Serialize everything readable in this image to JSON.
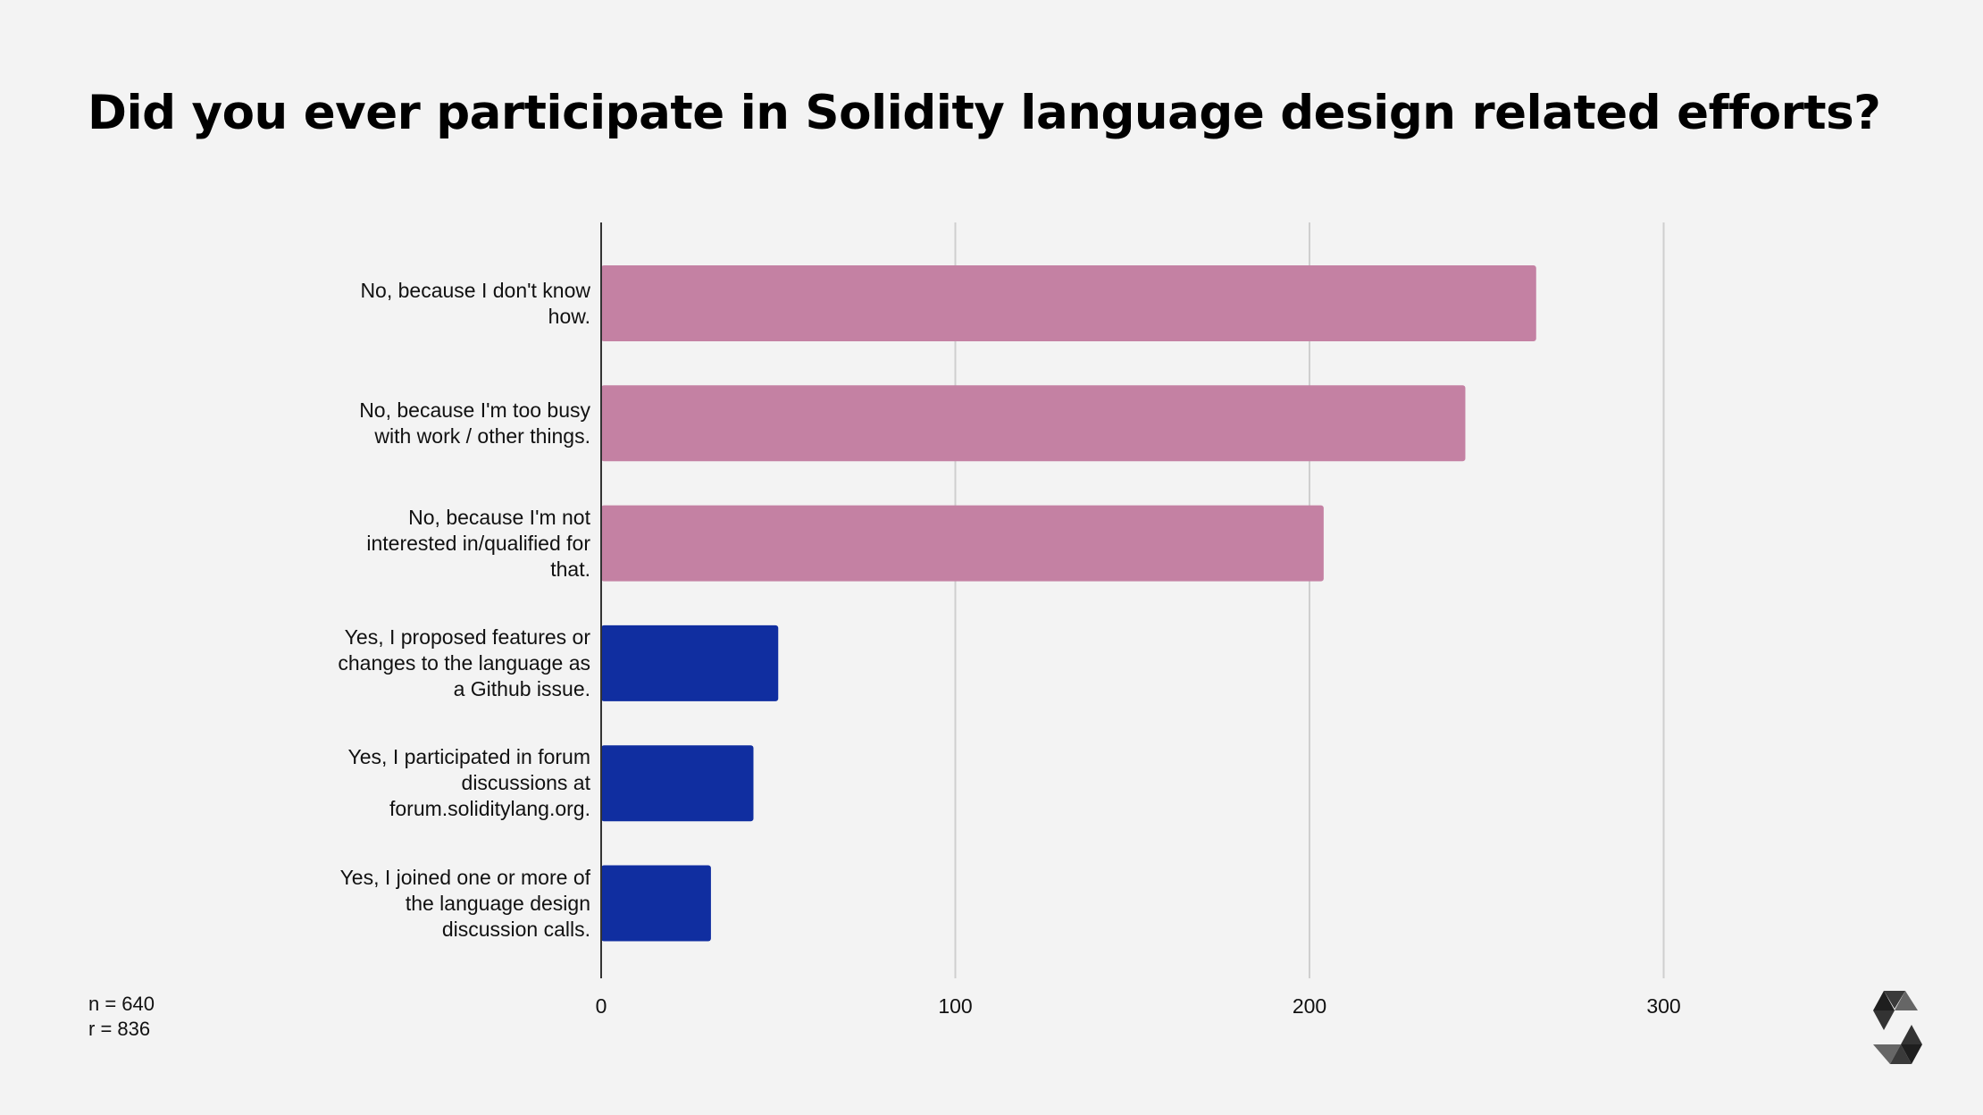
{
  "chart_data": {
    "type": "bar",
    "orientation": "horizontal",
    "title": "Did you ever participate in Solidity language design related efforts?",
    "categories": [
      "No, because I don't know how.",
      "No, because I'm too busy with work / other things.",
      "No, because I'm not interested in/qualified for that.",
      "Yes, I proposed features or changes to the language as a Github issue.",
      "Yes, I participated in forum discussions at forum.soliditylang.org.",
      "Yes, I joined one or more of the language design discussion calls."
    ],
    "values": [
      264,
      244,
      204,
      50,
      43,
      31
    ],
    "bar_colors": [
      "#c481a3",
      "#c481a3",
      "#c481a3",
      "#102ea0",
      "#102ea0",
      "#102ea0"
    ],
    "xlim": [
      0,
      350
    ],
    "xticks": [
      "0",
      "100",
      "200",
      "300"
    ],
    "xlabel": "",
    "ylabel": "",
    "grid": "vertical",
    "legend": "none"
  },
  "footnote": {
    "n": "n = 640",
    "r": "r = 836"
  },
  "logo": "solidity-logo"
}
